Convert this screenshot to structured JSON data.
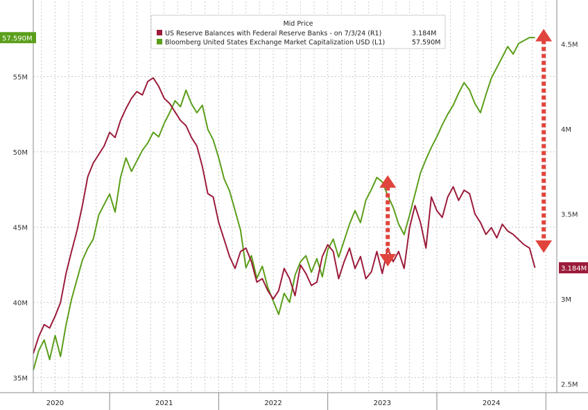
{
  "chart_data": {
    "type": "line",
    "legend": {
      "title": "Mid Price",
      "placement": "top-center",
      "entries": [
        {
          "name": "US Reserve Balances with Federal Reserve Banks -  on 7/3/24  (R1)",
          "value_label": "3.184M",
          "color": "#9b1b3a"
        },
        {
          "name": "Bloomberg United States Exchange Market Capitalization USD  (L1)",
          "value_label": "57.590M",
          "color": "#5a9e1a"
        }
      ]
    },
    "x_axis": {
      "start": 2019.8,
      "end": 2024.6,
      "year_labels": [
        {
          "label": "2020",
          "x": 2020.0
        },
        {
          "label": "2021",
          "x": 2021.0
        },
        {
          "label": "2022",
          "x": 2022.0
        },
        {
          "label": "2023",
          "x": 2023.0
        },
        {
          "label": "2024",
          "x": 2024.0
        }
      ],
      "year_separators": [
        2020.5,
        2021.5,
        2022.5,
        2023.5,
        2024.5
      ]
    },
    "y_left": {
      "min": 34,
      "max": 60,
      "ticks": [
        {
          "value": 35,
          "label": "35M"
        },
        {
          "value": 40,
          "label": "40M"
        },
        {
          "value": 45,
          "label": "45M"
        },
        {
          "value": 50,
          "label": "50M"
        },
        {
          "value": 55,
          "label": "55M"
        }
      ],
      "last_value_label": "57.590M",
      "last_value": 57.59
    },
    "y_right": {
      "min": 2.45,
      "max": 4.75,
      "ticks": [
        {
          "value": 2.5,
          "label": "2.5M"
        },
        {
          "value": 3.0,
          "label": "3M"
        },
        {
          "value": 3.5,
          "label": "3.5M"
        },
        {
          "value": 4.0,
          "label": "4M"
        },
        {
          "value": 4.5,
          "label": "4.5M"
        }
      ],
      "last_value_label": "3.184M",
      "last_value": 3.184
    },
    "grid": true,
    "series": [
      {
        "name": "Bloomberg United States Exchange Market Capitalization USD  (L1)",
        "axis": "left",
        "color": "#5a9e1a",
        "x": [
          2019.8,
          2019.85,
          2019.9,
          2019.95,
          2020.0,
          2020.05,
          2020.1,
          2020.15,
          2020.2,
          2020.25,
          2020.3,
          2020.35,
          2020.4,
          2020.45,
          2020.5,
          2020.55,
          2020.6,
          2020.65,
          2020.7,
          2020.75,
          2020.8,
          2020.85,
          2020.9,
          2020.95,
          2021.0,
          2021.05,
          2021.1,
          2021.15,
          2021.2,
          2021.25,
          2021.3,
          2021.35,
          2021.4,
          2021.45,
          2021.5,
          2021.55,
          2021.6,
          2021.65,
          2021.7,
          2021.75,
          2021.8,
          2021.85,
          2021.9,
          2021.95,
          2022.0,
          2022.05,
          2022.1,
          2022.15,
          2022.2,
          2022.25,
          2022.3,
          2022.35,
          2022.4,
          2022.45,
          2022.5,
          2022.55,
          2022.6,
          2022.65,
          2022.7,
          2022.75,
          2022.8,
          2022.85,
          2022.9,
          2022.95,
          2023.0,
          2023.05,
          2023.1,
          2023.15,
          2023.2,
          2023.25,
          2023.3,
          2023.35,
          2023.4,
          2023.45,
          2023.5,
          2023.55,
          2023.6,
          2023.65,
          2023.7,
          2023.75,
          2023.8,
          2023.85,
          2023.9,
          2023.95,
          2024.0,
          2024.05,
          2024.1,
          2024.15,
          2024.2,
          2024.25,
          2024.3,
          2024.35,
          2024.4
        ],
        "y": [
          35.5,
          36.8,
          37.5,
          36.2,
          37.8,
          36.4,
          38.5,
          40.2,
          41.5,
          42.8,
          43.6,
          44.2,
          45.8,
          46.5,
          47.2,
          46.0,
          48.3,
          49.6,
          48.7,
          49.4,
          50.1,
          50.6,
          51.3,
          51.0,
          51.9,
          52.6,
          53.4,
          53.0,
          54.1,
          53.2,
          52.6,
          53.1,
          51.5,
          50.8,
          49.6,
          48.2,
          47.4,
          46.1,
          44.8,
          42.3,
          43.1,
          41.6,
          42.4,
          41.0,
          40.1,
          39.2,
          40.6,
          40.0,
          41.8,
          42.7,
          43.1,
          42.0,
          42.9,
          41.7,
          43.5,
          44.2,
          43.0,
          44.1,
          45.2,
          46.1,
          45.3,
          46.8,
          47.5,
          48.3,
          48.0,
          47.1,
          46.3,
          45.2,
          44.5,
          45.8,
          47.2,
          48.6,
          49.5,
          50.3,
          51.0,
          51.8,
          52.5,
          53.1,
          53.9,
          54.6,
          54.1,
          53.2,
          52.6,
          53.8,
          54.9,
          55.6,
          56.3,
          57.0,
          56.5,
          57.2,
          57.4,
          57.6,
          57.59
        ]
      },
      {
        "name": "US Reserve Balances with Federal Reserve Banks -  on 7/3/24  (R1)",
        "axis": "right",
        "color": "#9b1b3a",
        "x": [
          2019.8,
          2019.85,
          2019.9,
          2019.95,
          2020.0,
          2020.05,
          2020.1,
          2020.15,
          2020.2,
          2020.25,
          2020.3,
          2020.35,
          2020.4,
          2020.45,
          2020.5,
          2020.55,
          2020.6,
          2020.65,
          2020.7,
          2020.75,
          2020.8,
          2020.85,
          2020.9,
          2020.95,
          2021.0,
          2021.05,
          2021.1,
          2021.15,
          2021.2,
          2021.25,
          2021.3,
          2021.35,
          2021.4,
          2021.45,
          2021.5,
          2021.55,
          2021.6,
          2021.65,
          2021.7,
          2021.75,
          2021.8,
          2021.85,
          2021.9,
          2021.95,
          2022.0,
          2022.05,
          2022.1,
          2022.15,
          2022.2,
          2022.25,
          2022.3,
          2022.35,
          2022.4,
          2022.45,
          2022.5,
          2022.55,
          2022.6,
          2022.65,
          2022.7,
          2022.75,
          2022.8,
          2022.85,
          2022.9,
          2022.95,
          2023.0,
          2023.05,
          2023.1,
          2023.15,
          2023.2,
          2023.25,
          2023.3,
          2023.35,
          2023.4,
          2023.45,
          2023.5,
          2023.55,
          2023.6,
          2023.65,
          2023.7,
          2023.75,
          2023.8,
          2023.85,
          2023.9,
          2023.95,
          2024.0,
          2024.05,
          2024.1,
          2024.15,
          2024.2,
          2024.25,
          2024.3,
          2024.35,
          2024.4
        ],
        "y": [
          2.68,
          2.78,
          2.85,
          2.83,
          2.9,
          2.98,
          3.15,
          3.28,
          3.4,
          3.55,
          3.72,
          3.8,
          3.85,
          3.9,
          3.98,
          3.95,
          4.05,
          4.12,
          4.18,
          4.22,
          4.2,
          4.28,
          4.3,
          4.25,
          4.18,
          4.15,
          4.1,
          4.05,
          4.02,
          3.95,
          3.9,
          3.78,
          3.62,
          3.6,
          3.45,
          3.35,
          3.25,
          3.18,
          3.28,
          3.3,
          3.22,
          3.1,
          3.12,
          3.05,
          3.0,
          3.05,
          3.18,
          3.12,
          3.02,
          3.2,
          3.15,
          3.08,
          3.1,
          3.25,
          3.32,
          3.28,
          3.12,
          3.22,
          3.3,
          3.18,
          3.25,
          3.12,
          3.16,
          3.28,
          3.15,
          3.3,
          3.22,
          3.28,
          3.18,
          3.42,
          3.55,
          3.45,
          3.3,
          3.6,
          3.52,
          3.48,
          3.6,
          3.66,
          3.58,
          3.64,
          3.62,
          3.5,
          3.45,
          3.38,
          3.42,
          3.36,
          3.44,
          3.4,
          3.38,
          3.35,
          3.32,
          3.3,
          3.184
        ]
      }
    ],
    "annotations": [
      {
        "type": "double-arrow",
        "x": 2023.05,
        "axis": "right",
        "from": 3.2,
        "to": 3.72,
        "color": "#e0443c"
      },
      {
        "type": "double-arrow",
        "x": 2024.48,
        "axis": "right",
        "from": 3.28,
        "to": 4.58,
        "color": "#e0443c"
      }
    ]
  }
}
